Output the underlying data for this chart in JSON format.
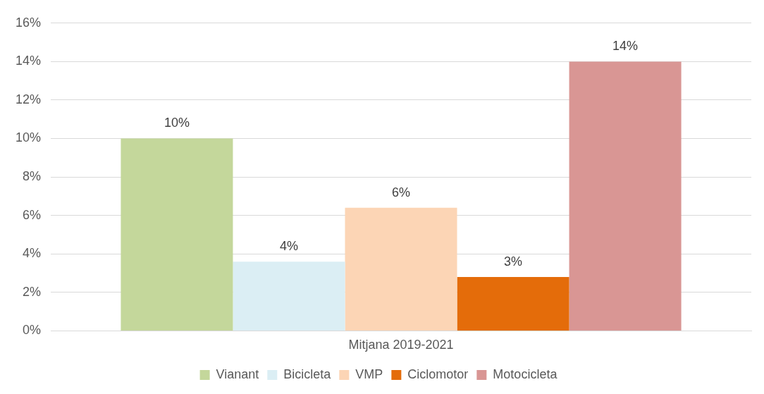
{
  "chart_data": {
    "type": "bar",
    "categories": [
      "Mitjana 2019-2021"
    ],
    "series": [
      {
        "name": "Vianant",
        "color": "#c4d79b",
        "values": [
          10
        ],
        "value_labels": [
          "10%"
        ]
      },
      {
        "name": "Bicicleta",
        "color": "#dbeef4",
        "values": [
          3.6
        ],
        "value_labels": [
          "4%"
        ]
      },
      {
        "name": "VMP",
        "color": "#fcd5b5",
        "values": [
          6.4
        ],
        "value_labels": [
          "6%"
        ]
      },
      {
        "name": "Ciclomotor",
        "color": "#e46c0a",
        "values": [
          2.8
        ],
        "value_labels": [
          "3%"
        ]
      },
      {
        "name": "Motocicleta",
        "color": "#d99694",
        "values": [
          14
        ],
        "value_labels": [
          "14%"
        ]
      }
    ],
    "ylim": [
      0,
      16
    ],
    "yticks": [
      {
        "value": 0,
        "label": "0%"
      },
      {
        "value": 2,
        "label": "2%"
      },
      {
        "value": 4,
        "label": "4%"
      },
      {
        "value": 6,
        "label": "6%"
      },
      {
        "value": 8,
        "label": "8%"
      },
      {
        "value": 10,
        "label": "10%"
      },
      {
        "value": 12,
        "label": "12%"
      },
      {
        "value": 14,
        "label": "14%"
      },
      {
        "value": 16,
        "label": "16%"
      }
    ],
    "grid": "y",
    "legend": "bottom"
  }
}
